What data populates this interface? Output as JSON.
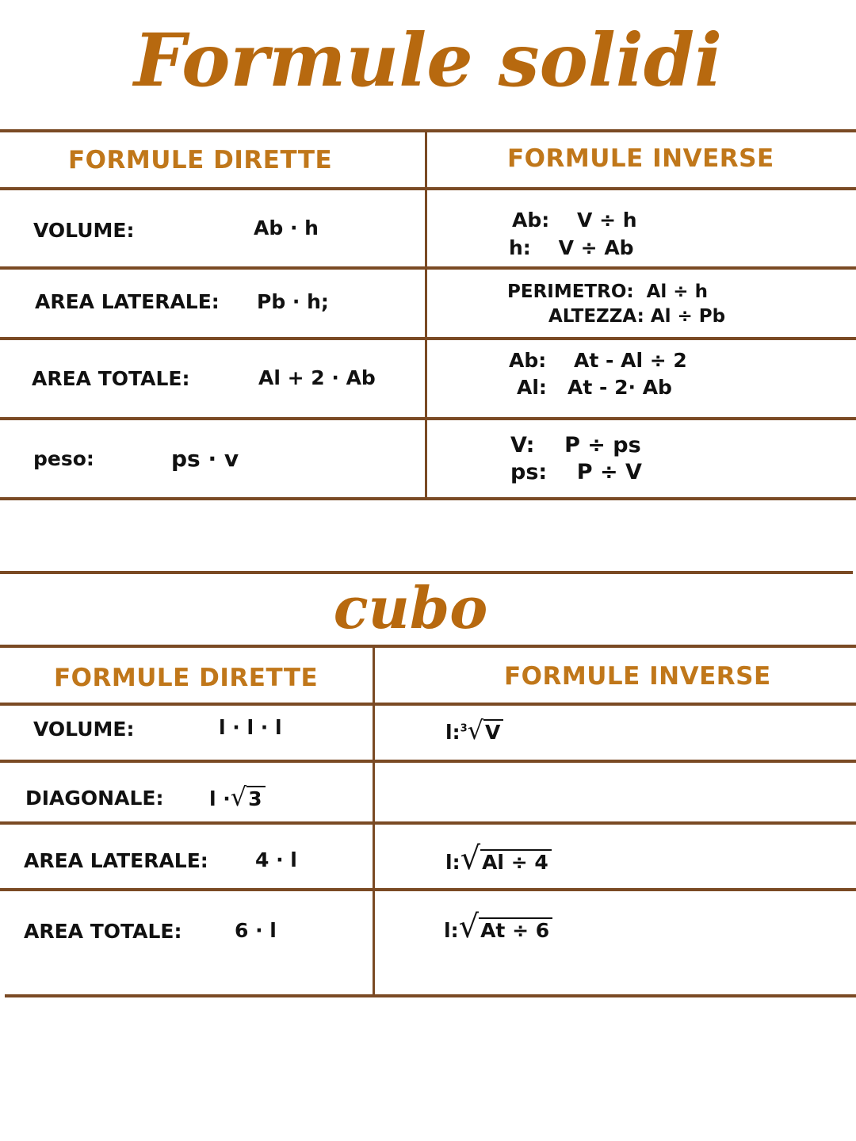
{
  "title": "Formule solidi",
  "solids": {
    "headers": {
      "direct": "FORMULE DIRETTE",
      "inverse": "FORMULE INVERSE"
    },
    "rows": [
      {
        "label": "VOLUME:",
        "formula": "Ab · h",
        "inverse": [
          "Ab:    V ÷ h",
          "h:    V ÷ Ab"
        ]
      },
      {
        "label": "AREA LATERALE:",
        "formula": "Pb · h;",
        "inverse": [
          "PERIMETRO:  Al ÷ h",
          "ALTEZZA: Al ÷ Pb"
        ]
      },
      {
        "label": "AREA TOTALE:",
        "formula": "Al + 2 · Ab",
        "inverse": [
          "Ab:    At - Al ÷ 2",
          "Al:   At - 2· Ab"
        ]
      },
      {
        "label": "peso:",
        "formula": "ps · v",
        "inverse": [
          "V:    P ÷ ps",
          "ps:    P ÷ V"
        ]
      }
    ]
  },
  "cube": {
    "title": "cubo",
    "headers": {
      "direct": "FORMULE DIRETTE",
      "inverse": "FORMULE INVERSE"
    },
    "rows": [
      {
        "label": "VOLUME:",
        "formula": "l · l · l",
        "inverse_prefix": "l:",
        "inverse_index": "3",
        "inverse_radicand": "V"
      },
      {
        "label": "DIAGONALE:",
        "formula_prefix": "l ·",
        "formula_radicand": "3"
      },
      {
        "label": "AREA LATERALE:",
        "formula": "4 · l",
        "inverse_prefix": "l:",
        "inverse_radicand": "Al ÷ 4"
      },
      {
        "label": "AREA TOTALE:",
        "formula": "6 · l",
        "inverse_prefix": "l:",
        "inverse_radicand": "At ÷ 6"
      }
    ]
  },
  "colors": {
    "accent": "#b7690f",
    "rule": "#7a4a24"
  }
}
